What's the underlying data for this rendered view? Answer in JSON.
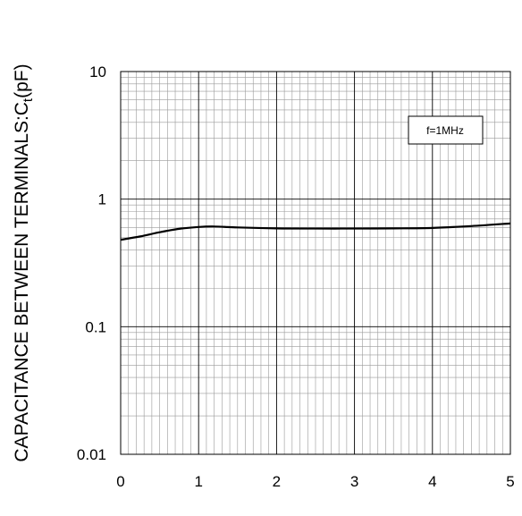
{
  "chart_data": {
    "type": "line",
    "title": "",
    "xlabel": "",
    "ylabel": {
      "main": "CAPACITANCE BETWEEN TERMINALS:C",
      "sub": "t",
      "unit": "(pF)"
    },
    "x_scale": "linear",
    "y_scale": "log",
    "xlim": [
      0,
      5
    ],
    "ylim": [
      0.01,
      10
    ],
    "x_ticks": [
      "0",
      "1",
      "2",
      "3",
      "4",
      "5"
    ],
    "y_ticks": [
      "10",
      "1",
      "0.1",
      "0.01"
    ],
    "grid": true,
    "legend": {
      "text": "f=1MHz",
      "position": "top-right"
    },
    "series": [
      {
        "color": "#000000",
        "x": [
          0,
          0.25,
          0.5,
          0.75,
          1.0,
          1.2,
          1.5,
          2.0,
          2.5,
          3.0,
          3.5,
          4.0,
          4.5,
          5.0
        ],
        "y": [
          0.48,
          0.51,
          0.55,
          0.585,
          0.605,
          0.61,
          0.6,
          0.59,
          0.588,
          0.588,
          0.59,
          0.595,
          0.615,
          0.645
        ]
      }
    ]
  }
}
